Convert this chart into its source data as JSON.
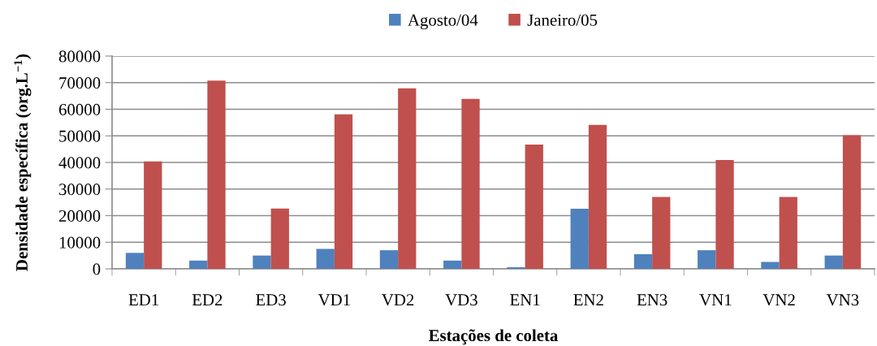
{
  "chart_data": {
    "type": "bar",
    "xlabel": "Estações de coleta",
    "ylabel": "Densidade específica (org.L$^{−1}$)",
    "categories": [
      "ED1",
      "ED2",
      "ED3",
      "VD1",
      "VD2",
      "VD3",
      "EN1",
      "EN2",
      "EN3",
      "VN1",
      "VN2",
      "VN3"
    ],
    "series": [
      {
        "name": "Agosto/04",
        "color": "#4f81bd",
        "values": [
          6000,
          3100,
          5000,
          7500,
          7000,
          3100,
          600,
          22600,
          5500,
          7000,
          2600,
          5000
        ]
      },
      {
        "name": "Janeiro/05",
        "color": "#c0504d",
        "values": [
          40400,
          70800,
          22700,
          58100,
          67900,
          63900,
          46700,
          54100,
          27000,
          40900,
          27000,
          50200
        ]
      }
    ],
    "ylim": [
      0,
      80000
    ],
    "yticks": [
      0,
      10000,
      20000,
      30000,
      40000,
      50000,
      60000,
      70000,
      80000
    ],
    "grid": "y",
    "legend": "top"
  }
}
